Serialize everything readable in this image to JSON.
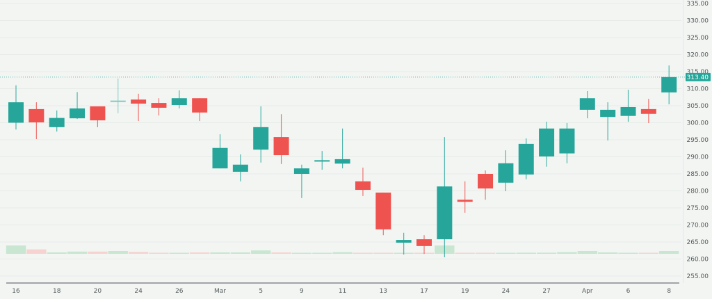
{
  "chart_data": {
    "type": "candlestick",
    "title": "",
    "xlabel": "",
    "ylabel": "",
    "ylim": [
      255,
      335
    ],
    "y_ticks": [
      "335.00",
      "330.00",
      "325.00",
      "320.00",
      "315.00",
      "310.00",
      "305.00",
      "300.00",
      "295.00",
      "290.00",
      "285.00",
      "280.00",
      "275.00",
      "270.00",
      "265.00",
      "260.00",
      "255.00"
    ],
    "x_tick_labels": [
      {
        "label": "16",
        "index": 0
      },
      {
        "label": "18",
        "index": 2
      },
      {
        "label": "20",
        "index": 4
      },
      {
        "label": "24",
        "index": 6
      },
      {
        "label": "26",
        "index": 8
      },
      {
        "label": "Mar",
        "index": 10
      },
      {
        "label": "5",
        "index": 12
      },
      {
        "label": "9",
        "index": 14
      },
      {
        "label": "11",
        "index": 16
      },
      {
        "label": "13",
        "index": 18
      },
      {
        "label": "17",
        "index": 20
      },
      {
        "label": "19",
        "index": 22
      },
      {
        "label": "24",
        "index": 24
      },
      {
        "label": "27",
        "index": 26
      },
      {
        "label": "Apr",
        "index": 28
      },
      {
        "label": "6",
        "index": 30
      },
      {
        "label": "8",
        "index": 32
      }
    ],
    "last_price": "313.40",
    "grid": true,
    "colors": {
      "up": "#26a69a",
      "down": "#ef5350",
      "volume_up": "#c8e6d2",
      "volume_down": "#f6d3d1",
      "background": "#f2f5f2",
      "axis": "#50535e",
      "text": "#555a5c"
    },
    "candles": [
      {
        "o": 300.0,
        "h": 311.0,
        "l": 298.0,
        "c": 306.0,
        "v": 3.0
      },
      {
        "o": 304.0,
        "h": 306.0,
        "l": 295.2,
        "c": 300.1,
        "v": 1.6
      },
      {
        "o": 298.7,
        "h": 303.6,
        "l": 297.4,
        "c": 301.4,
        "v": 0.5
      },
      {
        "o": 301.3,
        "h": 309.0,
        "l": 301.1,
        "c": 304.2,
        "v": 0.8
      },
      {
        "o": 304.8,
        "h": 304.8,
        "l": 298.7,
        "c": 300.7,
        "v": 0.8
      },
      {
        "o": 306.3,
        "h": 313.0,
        "l": 302.8,
        "c": 306.5,
        "v": 1.0,
        "faded": true
      },
      {
        "o": 306.8,
        "h": 308.5,
        "l": 300.5,
        "c": 305.6,
        "v": 0.7
      },
      {
        "o": 305.8,
        "h": 307.2,
        "l": 302.1,
        "c": 304.4,
        "v": 0.3
      },
      {
        "o": 305.2,
        "h": 309.5,
        "l": 304.2,
        "c": 307.2,
        "v": 0.3
      },
      {
        "o": 307.2,
        "h": 307.2,
        "l": 300.5,
        "c": 303.0,
        "v": 0.5
      },
      {
        "o": 286.6,
        "h": 296.6,
        "l": 286.6,
        "c": 292.6,
        "v": 0.5
      },
      {
        "o": 285.6,
        "h": 290.7,
        "l": 282.8,
        "c": 287.7,
        "v": 0.5
      },
      {
        "o": 292.1,
        "h": 304.8,
        "l": 288.3,
        "c": 298.7,
        "v": 1.2
      },
      {
        "o": 295.8,
        "h": 302.5,
        "l": 287.9,
        "c": 290.5,
        "v": 0.5
      },
      {
        "o": 285.0,
        "h": 287.7,
        "l": 277.9,
        "c": 286.6,
        "v": 0.3
      },
      {
        "o": 288.8,
        "h": 291.7,
        "l": 286.2,
        "c": 289.0,
        "v": 0.3
      },
      {
        "o": 288.0,
        "h": 298.3,
        "l": 286.6,
        "c": 289.3,
        "v": 0.6
      },
      {
        "o": 282.8,
        "h": 286.8,
        "l": 278.5,
        "c": 280.3,
        "v": 0.3
      },
      {
        "o": 279.5,
        "h": 279.5,
        "l": 267.0,
        "c": 268.7,
        "v": 0.3
      },
      {
        "o": 264.8,
        "h": 267.7,
        "l": 261.3,
        "c": 265.6,
        "v": 0.3
      },
      {
        "o": 265.8,
        "h": 267.0,
        "l": 261.5,
        "c": 263.8,
        "v": 0.3
      },
      {
        "o": 265.8,
        "h": 295.8,
        "l": 260.5,
        "c": 281.3,
        "v": 3.0
      },
      {
        "o": 277.4,
        "h": 282.8,
        "l": 273.6,
        "c": 276.8,
        "v": 0.3
      },
      {
        "o": 285.0,
        "h": 286.0,
        "l": 277.4,
        "c": 280.7,
        "v": 0.2
      },
      {
        "o": 282.4,
        "h": 291.9,
        "l": 279.9,
        "c": 288.1,
        "v": 0.3
      },
      {
        "o": 284.8,
        "h": 295.4,
        "l": 283.4,
        "c": 293.8,
        "v": 0.4
      },
      {
        "o": 290.1,
        "h": 300.3,
        "l": 287.1,
        "c": 298.3,
        "v": 0.4
      },
      {
        "o": 291.0,
        "h": 299.9,
        "l": 288.1,
        "c": 298.3,
        "v": 0.6
      },
      {
        "o": 303.8,
        "h": 309.3,
        "l": 301.3,
        "c": 307.2,
        "v": 1.0
      },
      {
        "o": 301.7,
        "h": 306.0,
        "l": 294.8,
        "c": 303.8,
        "v": 0.5
      },
      {
        "o": 302.0,
        "h": 309.7,
        "l": 300.3,
        "c": 304.6,
        "v": 0.3
      },
      {
        "o": 304.0,
        "h": 307.0,
        "l": 299.9,
        "c": 302.6,
        "v": 0.3
      },
      {
        "o": 308.9,
        "h": 316.8,
        "l": 305.4,
        "c": 313.4,
        "v": 1.0
      }
    ]
  }
}
